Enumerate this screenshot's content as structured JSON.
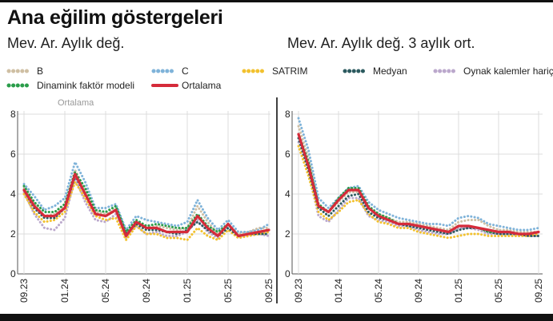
{
  "header": {
    "title": "Ana eğilim göstergeleri"
  },
  "panels": {
    "left_subtitle": "Mev. Ar. Aylık değ.",
    "right_subtitle": "Mev. Ar. Aylık değ. 3 aylık ort."
  },
  "legend": [
    {
      "key": "B",
      "label": "B",
      "color": "#cfbfa3",
      "style": "dotted"
    },
    {
      "key": "C",
      "label": "C",
      "color": "#7fb3d9",
      "style": "dotted"
    },
    {
      "key": "SATRIM",
      "label": "SATRIM",
      "color": "#f2c12e",
      "style": "dotted"
    },
    {
      "key": "Medyan",
      "label": "Medyan",
      "color": "#2c5a5f",
      "style": "dotted"
    },
    {
      "key": "Oynak",
      "label": "Oynak kalemler hariç",
      "color": "#bba8cc",
      "style": "dotted"
    },
    {
      "key": "Dinamik",
      "label": "Dinamink faktör modeli",
      "color": "#2a9d4a",
      "style": "dotted"
    },
    {
      "key": "Ortalama",
      "label": "Ortalama",
      "color": "#d52b3a",
      "style": "solid"
    }
  ],
  "chart_data": [
    {
      "type": "line",
      "title": "Mev. Ar. Aylık değ.",
      "ylim": [
        0,
        8
      ],
      "yticks": [
        0,
        2,
        4,
        6,
        8
      ],
      "x_tick_labels": [
        "09.23",
        "01.24",
        "05.24",
        "09.24",
        "01.25",
        "05.25",
        "09.25"
      ],
      "x_tick_index": [
        0,
        4,
        8,
        12,
        16,
        20,
        24
      ],
      "ghost_label": "Ortalama",
      "series": [
        {
          "name": "B",
          "values": [
            4.3,
            3.5,
            2.9,
            3.0,
            3.4,
            5.2,
            4.2,
            3.1,
            3.0,
            3.3,
            1.8,
            2.6,
            2.3,
            2.4,
            2.3,
            2.2,
            2.3,
            3.4,
            2.6,
            2.0,
            2.5,
            2.0,
            2.1,
            2.3,
            2.3
          ]
        },
        {
          "name": "C",
          "values": [
            4.5,
            3.9,
            3.2,
            3.4,
            3.8,
            5.6,
            4.6,
            3.3,
            3.3,
            3.5,
            2.2,
            2.9,
            2.7,
            2.6,
            2.5,
            2.4,
            2.6,
            3.7,
            2.8,
            2.2,
            2.7,
            2.1,
            2.1,
            2.2,
            2.5
          ]
        },
        {
          "name": "SATRIM",
          "values": [
            4.0,
            3.1,
            2.6,
            2.7,
            3.1,
            4.6,
            3.8,
            2.9,
            2.7,
            2.8,
            1.7,
            2.4,
            2.0,
            2.0,
            1.8,
            1.8,
            1.7,
            2.3,
            1.9,
            1.7,
            2.2,
            1.8,
            1.9,
            2.0,
            2.1
          ]
        },
        {
          "name": "Medyan",
          "values": [
            4.2,
            3.3,
            2.8,
            2.8,
            3.3,
            4.9,
            4.0,
            3.0,
            2.9,
            3.2,
            2.0,
            2.5,
            2.2,
            2.2,
            2.1,
            2.0,
            2.2,
            2.6,
            2.2,
            1.9,
            2.3,
            1.9,
            2.0,
            2.0,
            2.0
          ]
        },
        {
          "name": "Oynak",
          "values": [
            4.1,
            3.0,
            2.3,
            2.2,
            2.8,
            4.8,
            3.6,
            2.7,
            2.6,
            3.0,
            1.9,
            2.4,
            2.0,
            2.1,
            1.9,
            1.9,
            2.1,
            2.7,
            2.1,
            1.8,
            2.3,
            1.8,
            1.9,
            2.0,
            1.9
          ]
        },
        {
          "name": "Dinamik",
          "values": [
            4.4,
            3.6,
            3.1,
            3.1,
            3.5,
            5.1,
            4.3,
            3.2,
            3.1,
            3.4,
            2.1,
            2.7,
            2.4,
            2.5,
            2.4,
            2.3,
            2.3,
            3.0,
            2.4,
            2.1,
            2.5,
            1.9,
            2.0,
            2.1,
            2.2
          ]
        },
        {
          "name": "Ortalama",
          "values": [
            4.2,
            3.4,
            2.9,
            2.9,
            3.3,
            5.0,
            4.0,
            3.0,
            2.9,
            3.2,
            1.9,
            2.6,
            2.3,
            2.3,
            2.1,
            2.1,
            2.1,
            2.9,
            2.3,
            1.9,
            2.5,
            1.9,
            2.0,
            2.1,
            2.2
          ]
        }
      ]
    },
    {
      "type": "line",
      "title": "Mev. Ar. Aylık değ. 3 aylık ort.",
      "ylim": [
        0,
        8
      ],
      "yticks": [
        0,
        2,
        4,
        6,
        8
      ],
      "x_tick_labels": [
        "09.23",
        "01.24",
        "05.24",
        "09.24",
        "01.25",
        "05.25",
        "09.25"
      ],
      "x_tick_index": [
        0,
        4,
        8,
        12,
        16,
        20,
        24
      ],
      "series": [
        {
          "name": "B",
          "values": [
            7.4,
            5.8,
            3.4,
            3.1,
            3.6,
            4.1,
            4.1,
            3.3,
            3.0,
            2.8,
            2.6,
            2.6,
            2.5,
            2.4,
            2.3,
            2.2,
            2.6,
            2.7,
            2.7,
            2.4,
            2.2,
            2.2,
            2.1,
            2.1,
            2.1
          ]
        },
        {
          "name": "C",
          "values": [
            7.8,
            6.2,
            3.8,
            3.3,
            3.8,
            4.3,
            4.4,
            3.6,
            3.2,
            3.0,
            2.8,
            2.7,
            2.6,
            2.5,
            2.5,
            2.4,
            2.8,
            2.9,
            2.8,
            2.5,
            2.4,
            2.3,
            2.2,
            2.2,
            2.3
          ]
        },
        {
          "name": "SATRIM",
          "values": [
            6.4,
            4.9,
            3.1,
            2.7,
            3.1,
            3.6,
            3.7,
            3.0,
            2.6,
            2.5,
            2.3,
            2.3,
            2.1,
            2.0,
            1.9,
            1.8,
            1.9,
            2.0,
            2.0,
            1.9,
            1.9,
            1.9,
            1.9,
            1.9,
            2.0
          ]
        },
        {
          "name": "Medyan",
          "values": [
            6.8,
            5.2,
            3.3,
            2.9,
            3.4,
            3.9,
            4.0,
            3.1,
            2.8,
            2.7,
            2.5,
            2.4,
            2.3,
            2.2,
            2.1,
            2.0,
            2.2,
            2.3,
            2.3,
            2.1,
            2.0,
            2.0,
            2.0,
            1.9,
            1.9
          ]
        },
        {
          "name": "Oynak",
          "values": [
            6.6,
            5.1,
            2.9,
            2.6,
            3.2,
            3.8,
            3.8,
            2.9,
            2.7,
            2.6,
            2.4,
            2.4,
            2.2,
            2.1,
            2.0,
            2.0,
            2.3,
            2.3,
            2.2,
            2.0,
            2.0,
            2.0,
            1.9,
            1.9,
            1.9
          ]
        },
        {
          "name": "Dinamik",
          "values": [
            7.0,
            5.6,
            3.5,
            3.1,
            3.8,
            4.3,
            4.3,
            3.4,
            3.0,
            2.8,
            2.5,
            2.5,
            2.4,
            2.3,
            2.2,
            2.1,
            2.4,
            2.4,
            2.3,
            2.1,
            2.1,
            2.1,
            2.0,
            2.0,
            2.1
          ]
        },
        {
          "name": "Ortalama",
          "values": [
            7.0,
            5.4,
            3.4,
            3.1,
            3.7,
            4.2,
            4.2,
            3.3,
            2.9,
            2.7,
            2.5,
            2.5,
            2.4,
            2.3,
            2.2,
            2.1,
            2.4,
            2.4,
            2.3,
            2.2,
            2.1,
            2.1,
            2.0,
            2.0,
            2.1
          ]
        }
      ]
    }
  ]
}
